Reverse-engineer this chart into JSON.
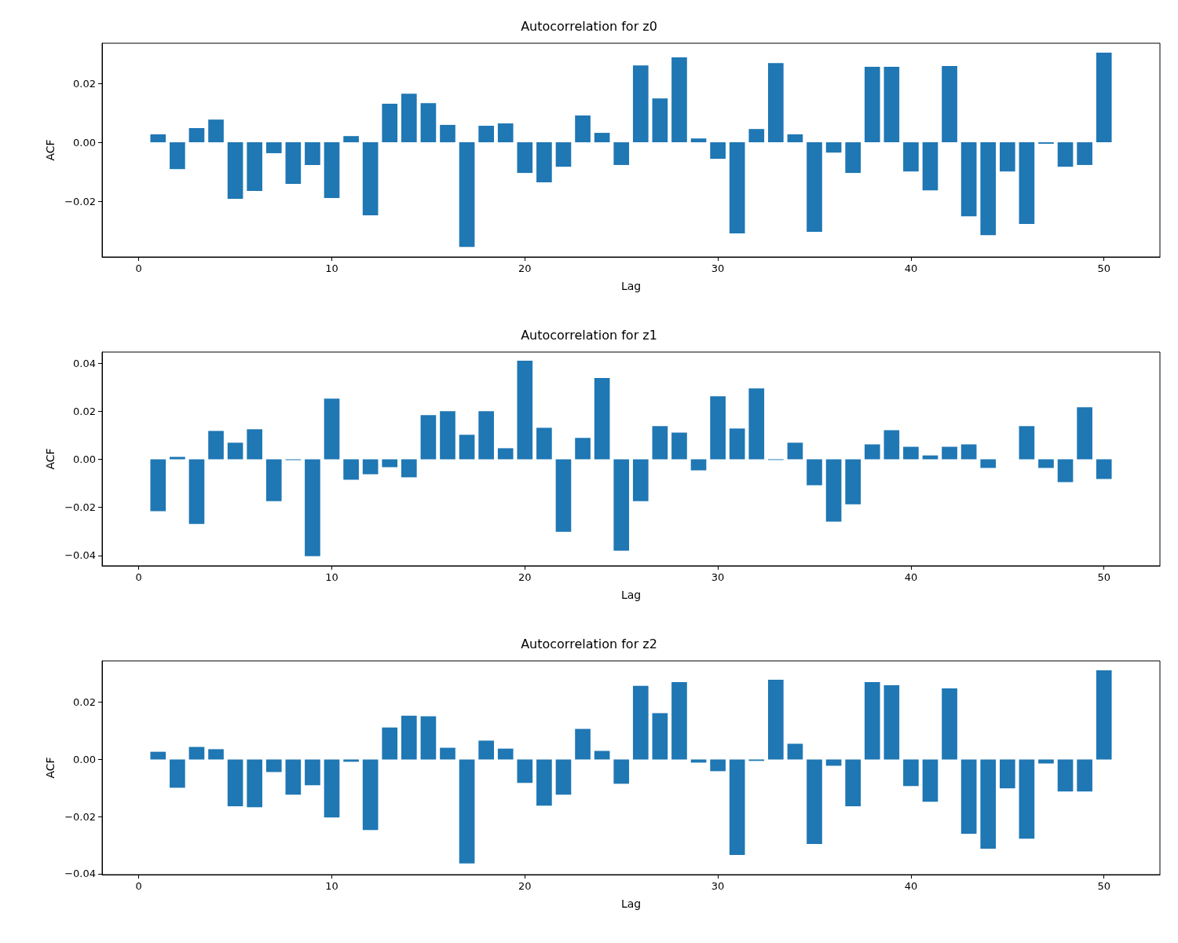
{
  "chart_data": [
    {
      "type": "bar",
      "title": "Autocorrelation for z0",
      "xlabel": "Lag",
      "ylabel": "ACF",
      "grid": false,
      "x": [
        1,
        2,
        3,
        4,
        5,
        6,
        7,
        8,
        9,
        10,
        11,
        12,
        13,
        14,
        15,
        16,
        17,
        18,
        19,
        20,
        21,
        22,
        23,
        24,
        25,
        26,
        27,
        28,
        29,
        30,
        31,
        32,
        33,
        34,
        35,
        36,
        37,
        38,
        39,
        40,
        41,
        42,
        43,
        44,
        45,
        46,
        47,
        48,
        49,
        50
      ],
      "series": [
        {
          "color": "#1f77b4",
          "values": [
            0.0027,
            -0.0091,
            0.0048,
            0.0077,
            -0.0192,
            -0.0165,
            -0.0037,
            -0.0141,
            -0.0077,
            -0.0189,
            0.0021,
            -0.0248,
            0.0131,
            0.0165,
            0.0133,
            0.0059,
            -0.0355,
            0.0056,
            0.0064,
            -0.0104,
            -0.0136,
            -0.0083,
            0.0091,
            0.0032,
            -0.0077,
            0.0261,
            0.0149,
            0.0288,
            0.0013,
            -0.0056,
            -0.0309,
            0.0045,
            0.0269,
            0.0027,
            -0.0304,
            -0.0035,
            -0.0104,
            0.0256,
            0.0256,
            -0.0099,
            -0.0163,
            0.0259,
            -0.0251,
            -0.0315,
            -0.0099,
            -0.0277,
            -0.0005,
            -0.0083,
            -0.0077,
            0.0304
          ]
        }
      ],
      "xlim": [
        -1.9,
        52.9
      ],
      "xticks": [
        0,
        10,
        20,
        30,
        40,
        50
      ],
      "ylim": [
        -0.0389,
        0.0336
      ],
      "yticks": [
        {
          "value": -0.02,
          "label": "−0.02"
        },
        {
          "value": 0,
          "label": "0.00"
        },
        {
          "value": 0.02,
          "label": "0.02"
        }
      ]
    },
    {
      "type": "bar",
      "title": "Autocorrelation for z1",
      "xlabel": "Lag",
      "ylabel": "ACF",
      "grid": false,
      "x": [
        1,
        2,
        3,
        4,
        5,
        6,
        7,
        8,
        9,
        10,
        11,
        12,
        13,
        14,
        15,
        16,
        17,
        18,
        19,
        20,
        21,
        22,
        23,
        24,
        25,
        26,
        27,
        28,
        29,
        30,
        31,
        32,
        33,
        34,
        35,
        36,
        37,
        38,
        39,
        40,
        41,
        42,
        43,
        44,
        45,
        46,
        47,
        48,
        49,
        50
      ],
      "series": [
        {
          "color": "#1f77b4",
          "values": [
            -0.0216,
            0.001,
            -0.0269,
            0.0118,
            0.0069,
            0.0125,
            -0.0174,
            -0.0003,
            -0.0403,
            0.0252,
            -0.0085,
            -0.0062,
            -0.0033,
            -0.0075,
            0.0184,
            0.02,
            0.0102,
            0.02,
            0.0046,
            0.041,
            0.0131,
            -0.0302,
            0.0089,
            0.0338,
            -0.038,
            -0.0174,
            0.0138,
            0.0111,
            -0.0046,
            0.0262,
            0.0128,
            0.0295,
            -0.0003,
            0.0069,
            -0.0108,
            -0.0259,
            -0.0187,
            0.0062,
            0.0121,
            0.0052,
            0.0016,
            0.0052,
            0.0062,
            -0.0036,
            0,
            0.0138,
            -0.0036,
            -0.0095,
            0.0216,
            -0.0082
          ]
        }
      ],
      "xlim": [
        -1.9,
        52.9
      ],
      "xticks": [
        0,
        10,
        20,
        30,
        40,
        50
      ],
      "ylim": [
        -0.0443,
        0.0446
      ],
      "yticks": [
        {
          "value": -0.04,
          "label": "−0.04"
        },
        {
          "value": -0.02,
          "label": "−0.02"
        },
        {
          "value": 0,
          "label": "0.00"
        },
        {
          "value": 0.02,
          "label": "0.02"
        },
        {
          "value": 0.04,
          "label": "0.04"
        }
      ]
    },
    {
      "type": "bar",
      "title": "Autocorrelation for z2",
      "xlabel": "Lag",
      "ylabel": "ACF",
      "grid": false,
      "x": [
        1,
        2,
        3,
        4,
        5,
        6,
        7,
        8,
        9,
        10,
        11,
        12,
        13,
        14,
        15,
        16,
        17,
        18,
        19,
        20,
        21,
        22,
        23,
        24,
        25,
        26,
        27,
        28,
        29,
        30,
        31,
        32,
        33,
        34,
        35,
        36,
        37,
        38,
        39,
        40,
        41,
        42,
        43,
        44,
        45,
        46,
        47,
        48,
        49,
        50
      ],
      "series": [
        {
          "color": "#1f77b4",
          "values": [
            0.0027,
            -0.0099,
            0.0044,
            0.0036,
            -0.0164,
            -0.0167,
            -0.0044,
            -0.0123,
            -0.009,
            -0.0203,
            -0.0008,
            -0.0247,
            0.0112,
            0.0153,
            0.0151,
            0.0041,
            -0.0364,
            0.0066,
            0.0038,
            -0.0082,
            -0.0162,
            -0.0123,
            0.0107,
            0.003,
            -0.0085,
            0.0258,
            0.0162,
            0.0271,
            -0.0011,
            -0.0041,
            -0.0334,
            -0.0005,
            0.0279,
            0.0055,
            -0.0296,
            -0.0022,
            -0.0164,
            0.0271,
            0.026,
            -0.0093,
            -0.0148,
            0.0249,
            -0.026,
            -0.0312,
            -0.0101,
            -0.0277,
            -0.0014,
            -0.0112,
            -0.0112,
            0.0312
          ]
        }
      ],
      "xlim": [
        -1.9,
        52.9
      ],
      "xticks": [
        0,
        10,
        20,
        30,
        40,
        50
      ],
      "ylim": [
        -0.0403,
        0.0345
      ],
      "yticks": [
        {
          "value": -0.04,
          "label": "−0.04"
        },
        {
          "value": -0.02,
          "label": "−0.02"
        },
        {
          "value": 0,
          "label": "0.00"
        },
        {
          "value": 0.02,
          "label": "0.02"
        }
      ]
    }
  ]
}
